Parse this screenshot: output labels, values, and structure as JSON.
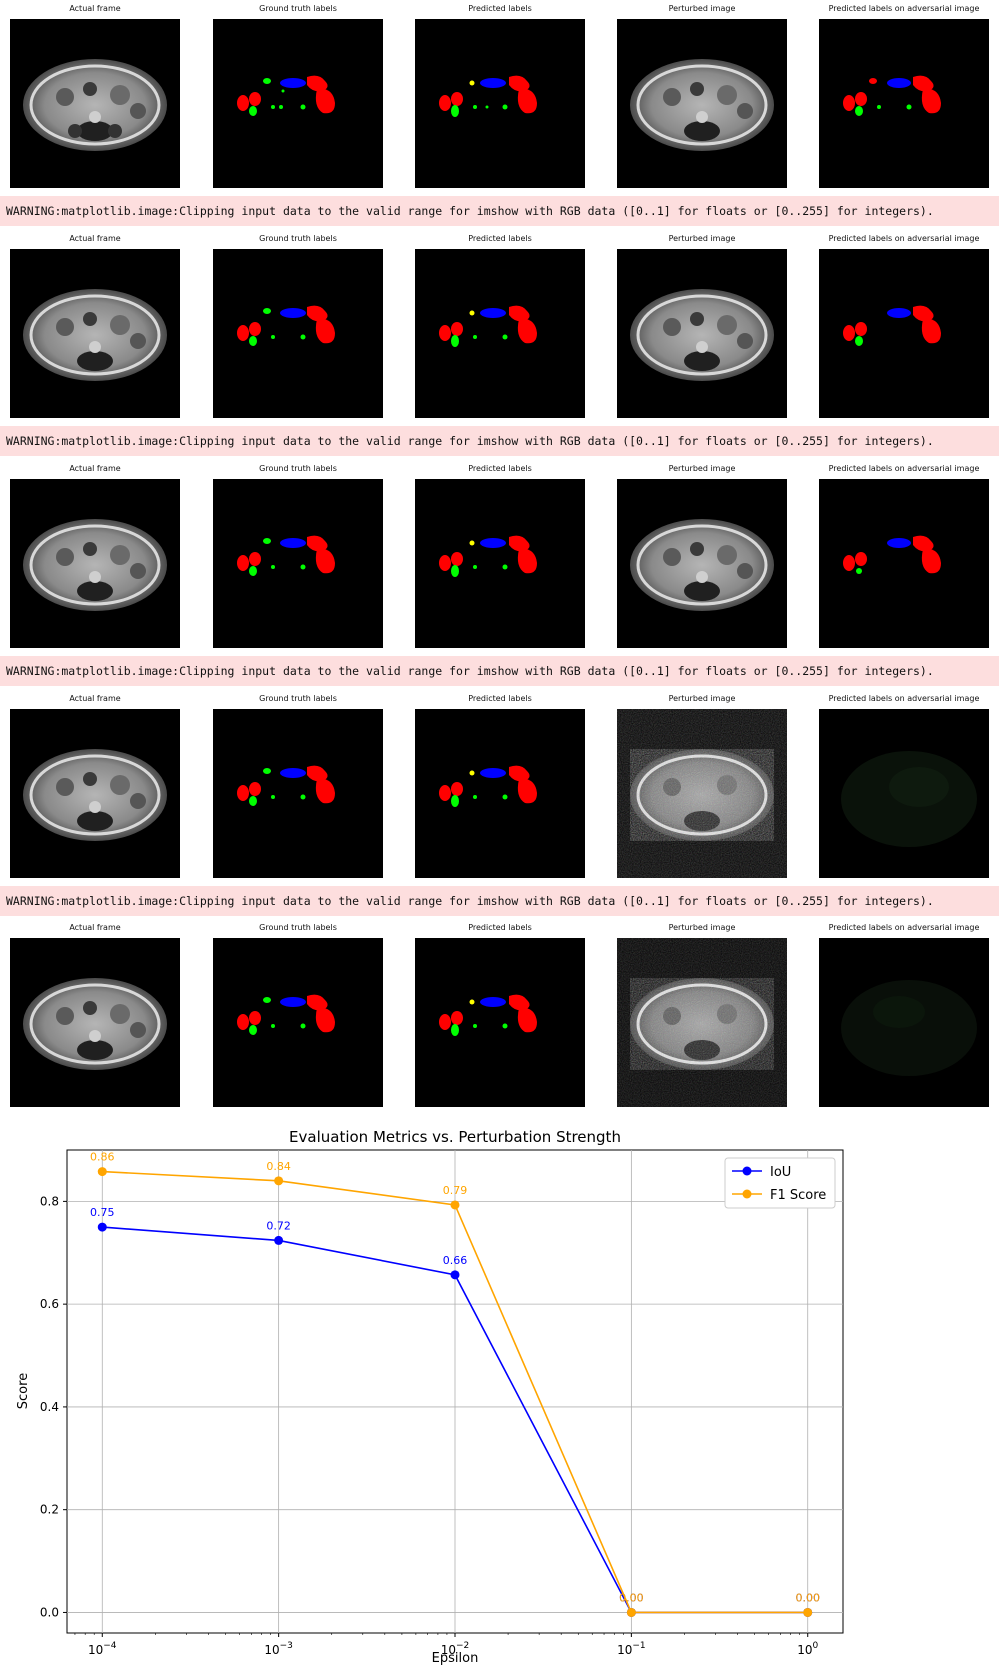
{
  "panel_titles": [
    "Actual frame",
    "Ground truth labels",
    "Predicted labels",
    "Perturbed image",
    "Predicted labels on adversarial image"
  ],
  "warning_text": "WARNING:matplotlib.image:Clipping input data to the valid range for imshow with RGB data ([0..1] for floats or [0..255] for integers).",
  "colors": {
    "iou": "#0000ff",
    "f1": "#ffa500",
    "warning_bg": "#fddede"
  },
  "rows": [
    {
      "adversarial": "full"
    },
    {
      "adversarial": "partial"
    },
    {
      "adversarial": "reduced"
    },
    {
      "adversarial": "dark"
    },
    {
      "adversarial": "dark"
    }
  ],
  "chart_data": {
    "type": "line",
    "title": "Evaluation Metrics vs. Perturbation Strength",
    "xlabel": "Epsilon",
    "ylabel": "Score",
    "xscale": "log",
    "x": [
      0.0001,
      0.001,
      0.01,
      0.1,
      1
    ],
    "x_tick_labels": [
      [
        "10",
        "−4"
      ],
      [
        "10",
        "−3"
      ],
      [
        "10",
        "−2"
      ],
      [
        "10",
        "−1"
      ],
      [
        "10",
        "0"
      ]
    ],
    "ylim": [
      -0.04,
      0.9
    ],
    "y_ticks": [
      0.0,
      0.2,
      0.4,
      0.6,
      0.8
    ],
    "y_tick_labels": [
      "0.0",
      "0.2",
      "0.4",
      "0.6",
      "0.8"
    ],
    "grid": true,
    "legend_position": "top-right",
    "series": [
      {
        "name": "IoU",
        "color": "#0000ff",
        "values": [
          0.75,
          0.724,
          0.657,
          0.0,
          0.0
        ],
        "labels": [
          "0.75",
          "0.72",
          "0.66",
          "0.00",
          "0.00"
        ]
      },
      {
        "name": "F1 Score",
        "color": "#ffa500",
        "values": [
          0.858,
          0.84,
          0.793,
          0.0,
          0.0
        ],
        "labels": [
          "0.86",
          "0.84",
          "0.79",
          "0.00",
          "0.00"
        ]
      }
    ]
  }
}
